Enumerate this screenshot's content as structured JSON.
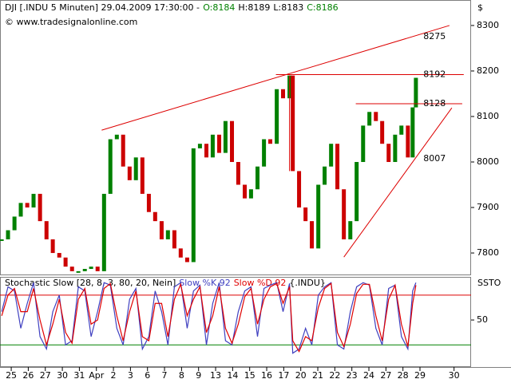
{
  "header": {
    "symbol": "DJI [.INDU  5 Minuten] 29.04.2009 17:30:00 -",
    "open": "O:8184",
    "high": "H:8189",
    "low": "L:8183",
    "close": "C:8186",
    "copyright": "© www.tradesignalonline.com",
    "currency": "$"
  },
  "chart_data": [
    {
      "type": "price-bars",
      "x": [
        -0.56,
        -0.19,
        0.19,
        0.56,
        0.94,
        1.31,
        1.69,
        2.07,
        2.44,
        2.82,
        3.19,
        3.57,
        3.94,
        4.32,
        4.69,
        5.07,
        5.45,
        5.82,
        6.2,
        6.57,
        6.95,
        7.32,
        7.7,
        8.08,
        8.45,
        8.83,
        9.2,
        9.58,
        9.95,
        10.33,
        10.7,
        11.08,
        11.46,
        11.83,
        12.21,
        12.58,
        12.96,
        13.33,
        13.71,
        14.08,
        14.46,
        14.84,
        15.21,
        15.59,
        15.96,
        16.34,
        16.53,
        16.9,
        17.28,
        17.65,
        18.03,
        18.4,
        18.78,
        19.15,
        19.53,
        19.91,
        20.28,
        20.66,
        21.03,
        21.41,
        21.78,
        22.16,
        22.54,
        22.91,
        23.29,
        23.57,
        23.76
      ],
      "values": [
        7830,
        7850,
        7880,
        7910,
        7900,
        7930,
        7870,
        7830,
        7800,
        7790,
        7770,
        7760,
        7760,
        7765,
        7770,
        7760,
        7930,
        8050,
        8060,
        7990,
        7960,
        8010,
        7930,
        7890,
        7870,
        7830,
        7850,
        7810,
        7790,
        7780,
        8030,
        8040,
        8010,
        8060,
        8020,
        8090,
        8000,
        7950,
        7920,
        7940,
        7990,
        8050,
        8040,
        8160,
        8140,
        8190,
        7980,
        7900,
        7870,
        7810,
        7950,
        7990,
        8040,
        7940,
        7830,
        7870,
        8000,
        8080,
        8110,
        8090,
        8040,
        8000,
        8060,
        8080,
        8010,
        8120,
        8185
      ],
      "up_color": "#008000",
      "down_color": "#cc0000",
      "xlim": [
        -0.66,
        27.0
      ],
      "ylim": [
        7751,
        8356
      ],
      "yticks": [
        7800,
        7900,
        8000,
        8100,
        8200,
        8300
      ],
      "trendlines": [
        {
          "x": [
            5.31,
            25.73
          ],
          "y": [
            8070,
            8300
          ],
          "color": "#dd0000"
        },
        {
          "x": [
            15.54,
            26.57
          ],
          "y": [
            8192,
            8192
          ],
          "color": "#dd0000"
        },
        {
          "x": [
            20.23,
            26.48
          ],
          "y": [
            8128,
            8128
          ],
          "color": "#dd0000"
        },
        {
          "x": [
            19.53,
            25.87
          ],
          "y": [
            7791,
            8119
          ],
          "color": "#dd0000"
        },
        {
          "x": [
            16.34,
            16.34
          ],
          "y": [
            8190,
            7980
          ],
          "color": "#dd0000"
        }
      ],
      "level_labels": [
        8275,
        8192,
        8128,
        8007
      ],
      "level_label_x": 24.2,
      "level_label_color": "#dd0000"
    },
    {
      "type": "line",
      "title": "Stochastic Slow [28, 8, 3, 80, 20, Nein]",
      "subtitle": "{.INDU}",
      "y_label": "SSTO",
      "x": [
        -0.56,
        -0.19,
        0.19,
        0.56,
        0.94,
        1.31,
        1.69,
        2.07,
        2.44,
        2.82,
        3.19,
        3.57,
        3.94,
        4.32,
        4.69,
        5.07,
        5.45,
        5.82,
        6.2,
        6.57,
        6.95,
        7.32,
        7.7,
        8.08,
        8.45,
        8.83,
        9.2,
        9.58,
        9.95,
        10.33,
        10.7,
        11.08,
        11.46,
        11.83,
        12.21,
        12.58,
        12.96,
        13.33,
        13.71,
        14.08,
        14.46,
        14.84,
        15.21,
        15.59,
        15.96,
        16.34,
        16.53,
        16.9,
        17.28,
        17.65,
        18.03,
        18.4,
        18.78,
        19.15,
        19.53,
        19.91,
        20.28,
        20.66,
        21.03,
        21.41,
        21.78,
        22.16,
        22.54,
        22.91,
        23.29,
        23.57,
        23.76
      ],
      "series": [
        {
          "name": "Slow %K 92",
          "color": "#4040c0",
          "values": [
            60,
            90,
            85,
            40,
            70,
            95,
            30,
            15,
            60,
            80,
            20,
            25,
            90,
            85,
            30,
            60,
            95,
            92,
            40,
            20,
            75,
            88,
            15,
            30,
            85,
            60,
            20,
            90,
            95,
            40,
            85,
            92,
            20,
            70,
            95,
            25,
            20,
            60,
            85,
            90,
            30,
            88,
            92,
            95,
            60,
            94,
            10,
            15,
            40,
            20,
            80,
            90,
            95,
            20,
            15,
            60,
            90,
            95,
            92,
            40,
            20,
            88,
            92,
            30,
            15,
            85,
            95
          ]
        },
        {
          "name": "Slow %D 92",
          "color": "#e00000",
          "values": [
            55,
            80,
            88,
            60,
            60,
            88,
            50,
            20,
            45,
            75,
            35,
            22,
            75,
            88,
            45,
            50,
            88,
            94,
            55,
            25,
            60,
            85,
            30,
            25,
            70,
            70,
            30,
            75,
            93,
            55,
            75,
            90,
            35,
            55,
            90,
            40,
            22,
            45,
            78,
            88,
            45,
            75,
            90,
            94,
            70,
            90,
            25,
            12,
            30,
            25,
            65,
            88,
            94,
            35,
            18,
            45,
            82,
            93,
            93,
            55,
            25,
            75,
            92,
            45,
            18,
            70,
            92
          ]
        }
      ],
      "hlines": [
        {
          "value": 80,
          "color": "#dd0000"
        },
        {
          "value": 20,
          "color": "#008000"
        }
      ],
      "xlim": [
        -0.66,
        27.0
      ],
      "ylim": [
        -6.7,
        101
      ],
      "yticks": [
        50
      ],
      "xticks": [
        {
          "value": 0,
          "label": "25"
        },
        {
          "value": 1,
          "label": "26"
        },
        {
          "value": 2,
          "label": "27"
        },
        {
          "value": 3,
          "label": "30"
        },
        {
          "value": 4,
          "label": "31"
        },
        {
          "value": 5,
          "label": "Apr"
        },
        {
          "value": 6,
          "label": "2"
        },
        {
          "value": 7,
          "label": "3"
        },
        {
          "value": 8,
          "label": "6"
        },
        {
          "value": 9,
          "label": "7"
        },
        {
          "value": 10,
          "label": "8"
        },
        {
          "value": 11,
          "label": "9"
        },
        {
          "value": 12,
          "label": "13"
        },
        {
          "value": 13,
          "label": "14"
        },
        {
          "value": 14,
          "label": "15"
        },
        {
          "value": 15,
          "label": "16"
        },
        {
          "value": 16,
          "label": "17"
        },
        {
          "value": 17,
          "label": "20"
        },
        {
          "value": 18,
          "label": "21"
        },
        {
          "value": 19,
          "label": "22"
        },
        {
          "value": 20,
          "label": "23"
        },
        {
          "value": 21,
          "label": "24"
        },
        {
          "value": 22,
          "label": "27"
        },
        {
          "value": 23,
          "label": "28"
        },
        {
          "value": 24,
          "label": "29"
        },
        {
          "value": 26,
          "label": "30"
        }
      ]
    }
  ]
}
